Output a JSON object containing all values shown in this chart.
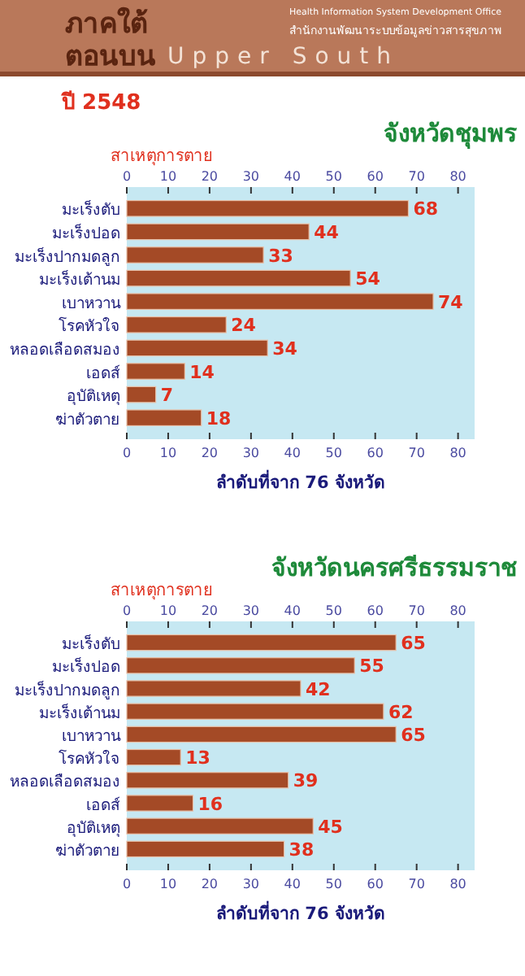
{
  "chart_data": [
    {
      "type": "bar",
      "orientation": "horizontal",
      "title": "จังหวัดชุมพร",
      "ylabel": "สาเหตุการตาย",
      "xlabel": "ลำดับที่จาก 76 จังหวัด",
      "annotations": [
        "ภาคใต้",
        "ตอนบน",
        "Upper South",
        "Health Information System Development Office",
        "สำนักงานพัฒนาระบบข้อมูลข่าวสารสุขภาพ",
        "ปี 2548"
      ],
      "categories": [
        "มะเร็งตับ",
        "มะเร็งปอด",
        "มะเร็งปากมดลูก",
        "มะเร็งเต้านม",
        "เบาหวาน",
        "โรคหัวใจ",
        "หลอดเลือดสมอง",
        "เอดส์",
        "อุบัติเหตุ",
        "ฆ่าตัวตาย"
      ],
      "values": [
        68,
        44,
        33,
        54,
        74,
        24,
        34,
        14,
        7,
        18
      ],
      "color": "#a44a26",
      "data_labels": true,
      "xlim": [
        0,
        84
      ],
      "xticks": [
        0,
        10,
        20,
        30,
        40,
        50,
        60,
        70,
        80
      ],
      "x2lim": [
        0,
        84
      ],
      "x2ticks": [
        0,
        10,
        20,
        30,
        40,
        50,
        60,
        70,
        80
      ]
    },
    {
      "type": "bar",
      "orientation": "horizontal",
      "title": "จังหวัดนครศรีธรรมราช",
      "ylabel": "สาเหตุการตาย",
      "xlabel": "ลำดับที่จาก 76 จังหวัด",
      "categories": [
        "มะเร็งตับ",
        "มะเร็งปอด",
        "มะเร็งปากมดลูก",
        "มะเร็งเต้านม",
        "เบาหวาน",
        "โรคหัวใจ",
        "หลอดเลือดสมอง",
        "เอดส์",
        "อุบัติเหตุ",
        "ฆ่าตัวตาย"
      ],
      "values": [
        65,
        55,
        42,
        62,
        65,
        13,
        39,
        16,
        45,
        38
      ],
      "color": "#a44a26",
      "data_labels": true,
      "xlim": [
        0,
        84
      ],
      "xticks": [
        0,
        10,
        20,
        30,
        40,
        50,
        60,
        70,
        80
      ],
      "x2lim": [
        0,
        84
      ],
      "x2ticks": [
        0,
        10,
        20,
        30,
        40,
        50,
        60,
        70,
        80
      ]
    }
  ]
}
